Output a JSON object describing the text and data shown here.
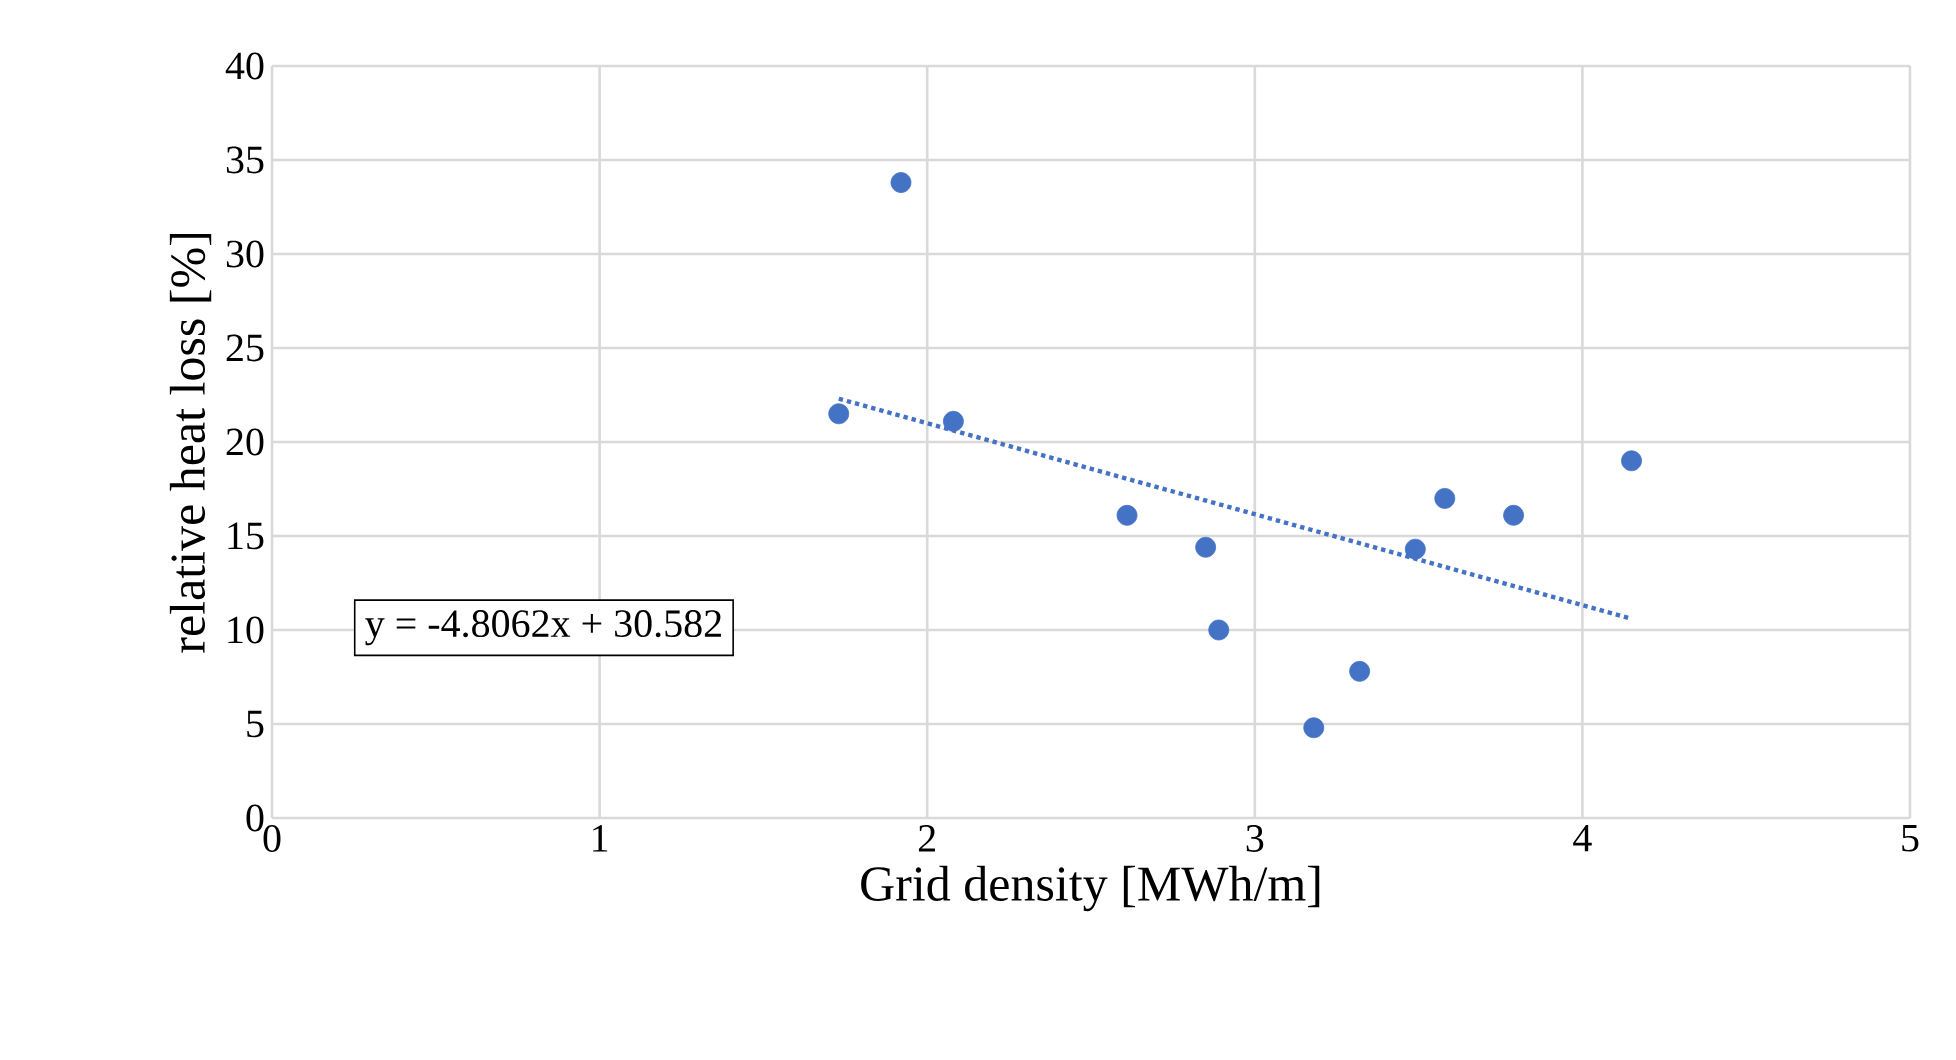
{
  "chart_data": {
    "type": "scatter",
    "xlabel": "Grid density [MWh/m]",
    "ylabel": "relative heat loss [%]",
    "series": [
      {
        "color": "#4472c4",
        "marker": "circle",
        "x": [
          1.73,
          1.92,
          2.08,
          2.61,
          2.85,
          2.89,
          3.18,
          3.32,
          3.49,
          3.58,
          3.79,
          4.15
        ],
        "values": [
          21.5,
          33.8,
          21.1,
          16.1,
          14.4,
          10.0,
          4.8,
          7.8,
          14.3,
          17.0,
          16.1,
          19.0
        ]
      },
      {
        "type": "line",
        "color": "#4472c4",
        "line_style": "dotted",
        "marker": "none",
        "x": [
          1.73,
          4.15
        ],
        "values": [
          22.3,
          10.6
        ]
      }
    ],
    "annotations": [
      "y = -4.8062x + 30.582"
    ],
    "xlim": [
      0,
      5
    ],
    "xticks": [
      0,
      1,
      2,
      3,
      4,
      5
    ],
    "ylim": [
      0,
      40
    ],
    "yticks": [
      0,
      5,
      10,
      15,
      20,
      25,
      30,
      35,
      40
    ],
    "grid": true
  }
}
